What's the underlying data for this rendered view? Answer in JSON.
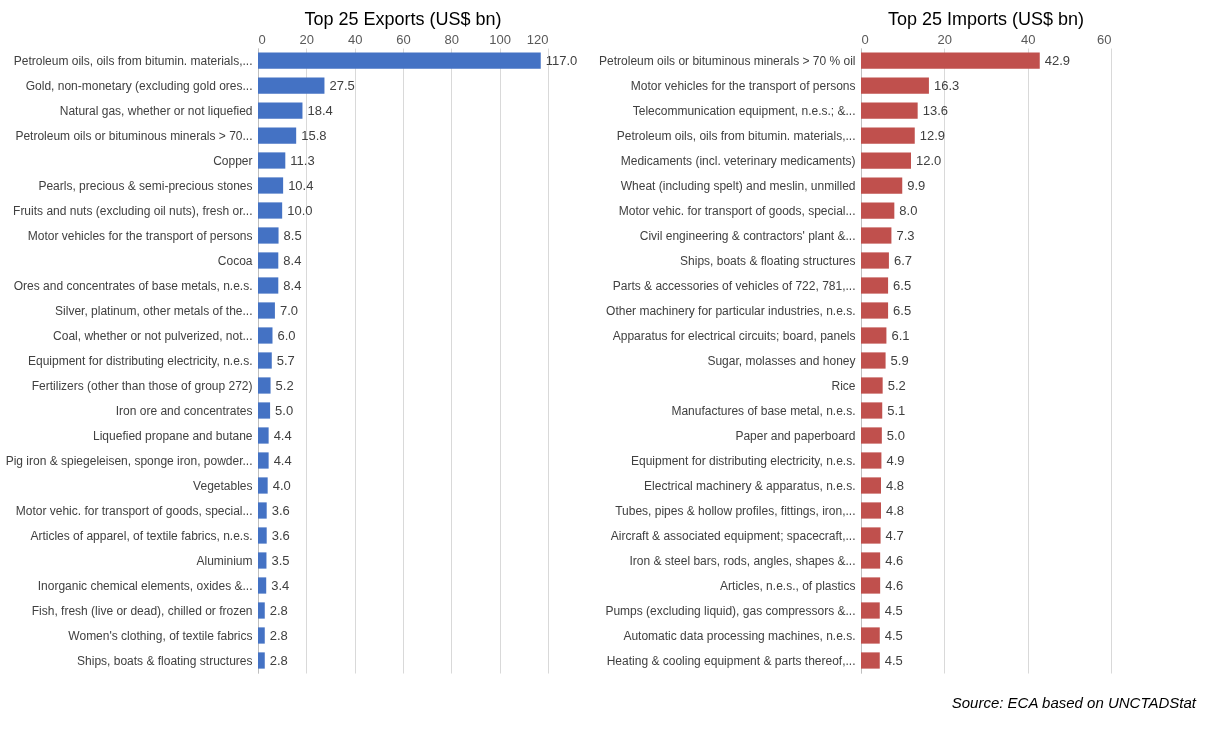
{
  "chart_data": [
    {
      "type": "bar",
      "orientation": "horizontal",
      "title": "Top 25 Exports (US$ bn)",
      "color": "#4472c4",
      "xlim": [
        0,
        120
      ],
      "xticks": [
        0,
        20,
        40,
        60,
        80,
        100,
        120
      ],
      "grid": "x",
      "categories": [
        "Petroleum oils, oils from bitumin. materials,...",
        "Gold, non-monetary (excluding gold ores...",
        "Natural gas, whether or not liquefied",
        "Petroleum oils or bituminous minerals > 70...",
        "Copper",
        "Pearls, precious & semi-precious stones",
        "Fruits and nuts (excluding oil nuts), fresh or...",
        "Motor vehicles for the transport of persons",
        "Cocoa",
        "Ores and concentrates of base metals, n.e.s.",
        "Silver, platinum, other metals of the...",
        "Coal, whether or not pulverized, not...",
        "Equipment for distributing electricity, n.e.s.",
        "Fertilizers (other than those of group 272)",
        "Iron ore and concentrates",
        "Liquefied propane and butane",
        "Pig iron & spiegeleisen, sponge iron, powder...",
        "Vegetables",
        "Motor vehic. for transport of goods, special...",
        "Articles of apparel, of textile fabrics, n.e.s.",
        "Aluminium",
        "Inorganic chemical elements, oxides &...",
        "Fish, fresh (live or dead), chilled or frozen",
        "Women's clothing, of textile fabrics",
        "Ships, boats & floating structures"
      ],
      "values": [
        117.0,
        27.5,
        18.4,
        15.8,
        11.3,
        10.4,
        10.0,
        8.5,
        8.4,
        8.4,
        7.0,
        6.0,
        5.7,
        5.2,
        5.0,
        4.4,
        4.4,
        4.0,
        3.6,
        3.6,
        3.5,
        3.4,
        2.8,
        2.8,
        2.8
      ],
      "value_labels": [
        "117.0",
        "27.5",
        "18.4",
        "15.8",
        "11.3",
        "10.4",
        "10.0",
        "8.5",
        "8.4",
        "8.4",
        "7.0",
        "6.0",
        "5.7",
        "5.2",
        "5.0",
        "4.4",
        "4.4",
        "4.0",
        "3.6",
        "3.6",
        "3.5",
        "3.4",
        "2.8",
        "2.8",
        "2.8"
      ]
    },
    {
      "type": "bar",
      "orientation": "horizontal",
      "title": "Top 25 Imports (US$ bn)",
      "color": "#c0504d",
      "xlim": [
        0,
        60
      ],
      "xticks": [
        0,
        20,
        40,
        60
      ],
      "grid": "x",
      "categories": [
        "Petroleum oils or bituminous minerals > 70 % oil",
        "Motor vehicles for the transport of persons",
        "Telecommunication equipment, n.e.s.; &...",
        "Petroleum oils, oils from bitumin. materials,...",
        "Medicaments (incl. veterinary medicaments)",
        "Wheat (including spelt) and meslin, unmilled",
        "Motor vehic. for transport of goods, special...",
        "Civil engineering & contractors' plant &...",
        "Ships, boats & floating structures",
        "Parts & accessories of vehicles of 722, 781,...",
        "Other machinery for particular industries, n.e.s.",
        "Apparatus for electrical circuits; board, panels",
        "Sugar, molasses and honey",
        "Rice",
        "Manufactures of base metal, n.e.s.",
        "Paper and paperboard",
        "Equipment for distributing electricity, n.e.s.",
        "Electrical machinery & apparatus, n.e.s.",
        "Tubes, pipes & hollow profiles, fittings, iron,...",
        "Aircraft & associated equipment; spacecraft,...",
        "Iron & steel bars, rods, angles, shapes &...",
        "Articles, n.e.s., of plastics",
        "Pumps (excluding liquid), gas compressors &...",
        "Automatic data processing machines, n.e.s.",
        "Heating & cooling equipment & parts thereof,..."
      ],
      "values": [
        42.9,
        16.3,
        13.6,
        12.9,
        12.0,
        9.9,
        8.0,
        7.3,
        6.7,
        6.5,
        6.5,
        6.1,
        5.9,
        5.2,
        5.1,
        5.0,
        4.9,
        4.8,
        4.8,
        4.7,
        4.6,
        4.6,
        4.5,
        4.5,
        4.5
      ],
      "value_labels": [
        "42.9",
        "16.3",
        "13.6",
        "12.9",
        "12.0",
        "9.9",
        "8.0",
        "7.3",
        "6.7",
        "6.5",
        "6.5",
        "6.1",
        "5.9",
        "5.2",
        "5.1",
        "5.0",
        "4.9",
        "4.8",
        "4.8",
        "4.7",
        "4.6",
        "4.6",
        "4.5",
        "4.5",
        "4.5"
      ],
      "annotations": [
        "Source: ECA based on UNCTADStat"
      ]
    }
  ]
}
